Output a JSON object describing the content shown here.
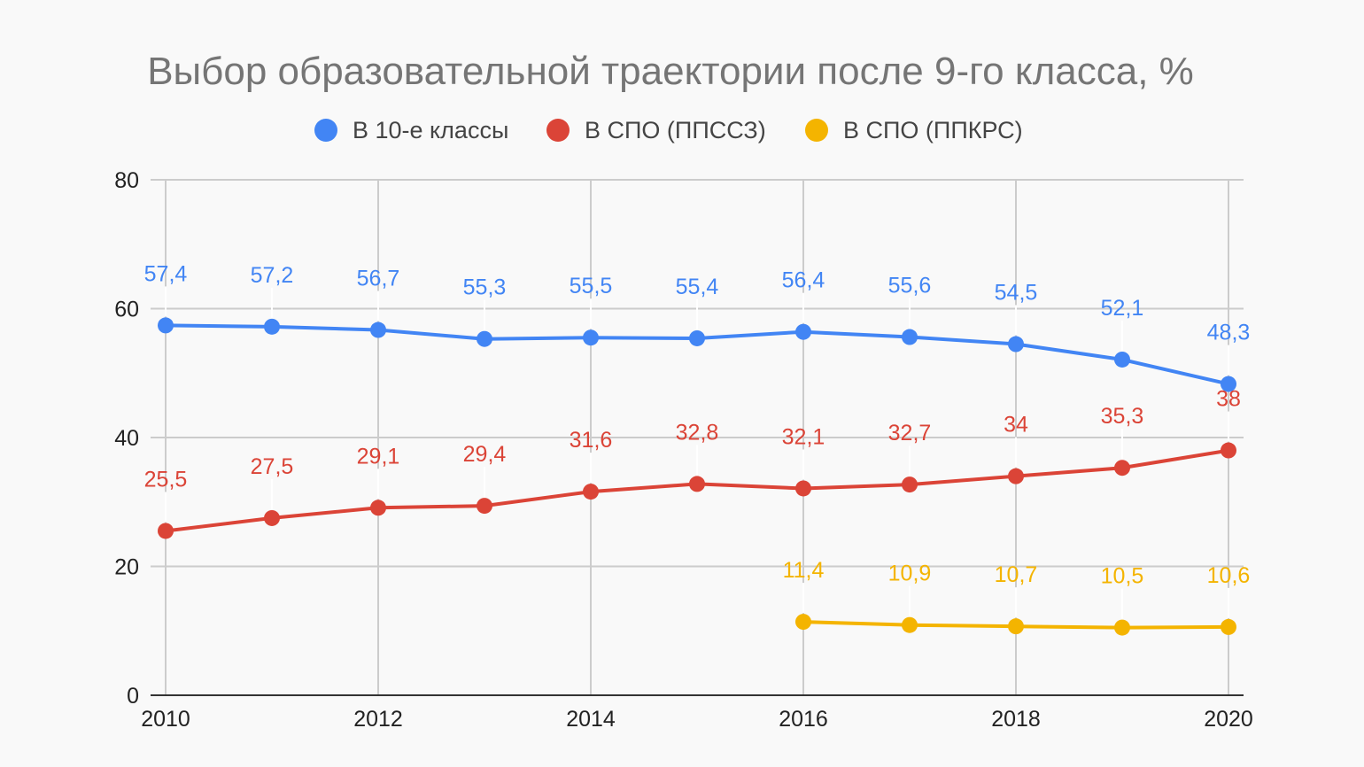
{
  "chart_data": {
    "type": "line",
    "title": "Выбор образовательной траектории после 9-го класса, %",
    "xlabel": "",
    "ylabel": "",
    "xlim": [
      2010,
      2020
    ],
    "ylim": [
      0,
      80
    ],
    "x_ticks": [
      2010,
      2012,
      2014,
      2016,
      2018,
      2020
    ],
    "y_ticks": [
      0,
      20,
      40,
      60,
      80
    ],
    "grid": true,
    "legend_position": "top",
    "x": [
      2010,
      2011,
      2012,
      2013,
      2014,
      2015,
      2016,
      2017,
      2018,
      2019,
      2020
    ],
    "series": [
      {
        "name": "В 10-е классы",
        "color": "#4285f4",
        "values": [
          57.4,
          57.2,
          56.7,
          55.3,
          55.5,
          55.4,
          56.4,
          55.6,
          54.5,
          52.1,
          48.3
        ],
        "labels": [
          "57,4",
          "57,2",
          "56,7",
          "55,3",
          "55,5",
          "55,4",
          "56,4",
          "55,6",
          "54,5",
          "52,1",
          "48,3"
        ]
      },
      {
        "name": "В СПО (ППССЗ)",
        "color": "#db4437",
        "values": [
          25.5,
          27.5,
          29.1,
          29.4,
          31.6,
          32.8,
          32.1,
          32.7,
          34,
          35.3,
          38
        ],
        "labels": [
          "25,5",
          "27,5",
          "29,1",
          "29,4",
          "31,6",
          "32,8",
          "32,1",
          "32,7",
          "34",
          "35,3",
          "38"
        ]
      },
      {
        "name": "В СПО (ППКРС)",
        "color": "#f4b400",
        "values": [
          null,
          null,
          null,
          null,
          null,
          null,
          11.4,
          10.9,
          10.7,
          10.5,
          10.6
        ],
        "labels": [
          null,
          null,
          null,
          null,
          null,
          null,
          "11,4",
          "10,9",
          "10,7",
          "10,5",
          "10,6"
        ]
      }
    ]
  }
}
